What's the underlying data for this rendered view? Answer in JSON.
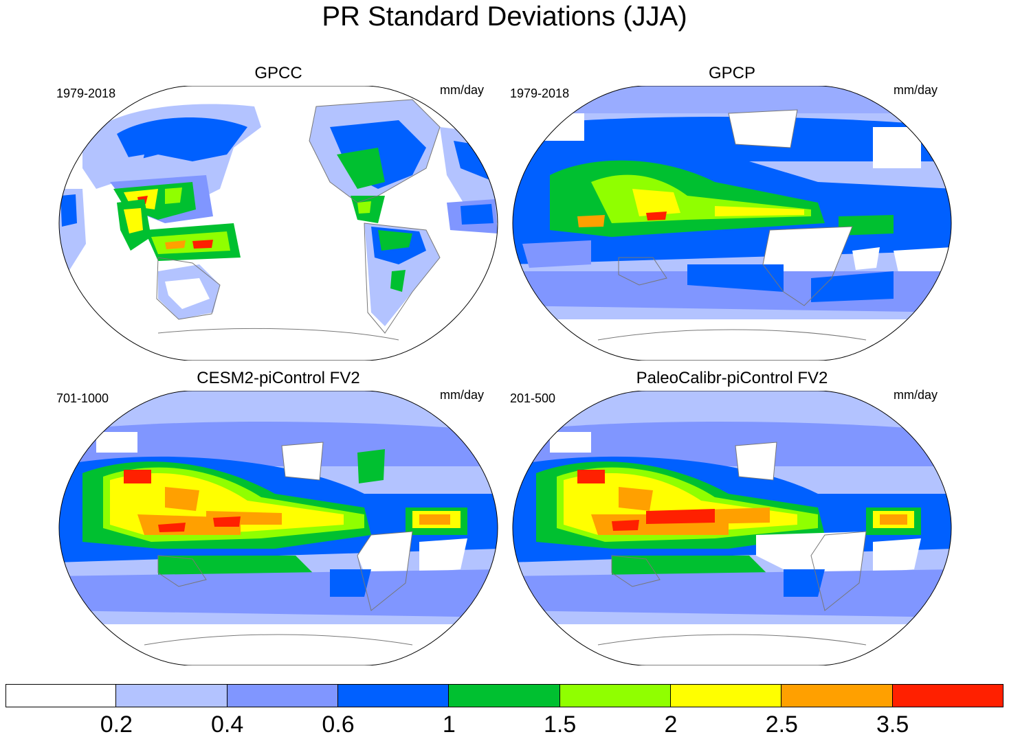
{
  "title": "PR Standard Deviations (JJA)",
  "units": "mm/day",
  "panels": [
    {
      "title": "GPCC",
      "period": "1979-2018",
      "units": "mm/day",
      "coverage": "land-only"
    },
    {
      "title": "GPCP",
      "period": "1979-2018",
      "units": "mm/day",
      "coverage": "global"
    },
    {
      "title": "CESM2-piControl FV2",
      "period": "701-1000",
      "units": "mm/day",
      "coverage": "global"
    },
    {
      "title": "PaleoCalibr-piControl FV2",
      "period": "201-500",
      "units": "mm/day",
      "coverage": "global"
    }
  ],
  "colorbar": {
    "colors": [
      "#ffffff",
      "#b3c3ff",
      "#8096ff",
      "#0060ff",
      "#00c030",
      "#90ff00",
      "#ffff00",
      "#ffa000",
      "#ff2000"
    ],
    "labels": [
      "0.2",
      "0.4",
      "0.6",
      "1",
      "1.5",
      "2",
      "2.5",
      "3.5"
    ]
  }
}
